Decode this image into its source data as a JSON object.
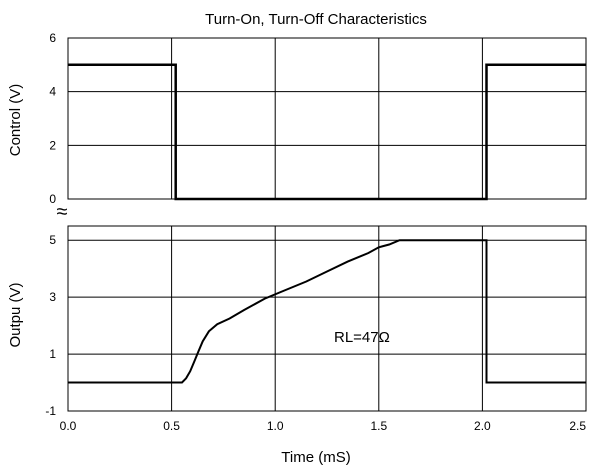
{
  "chart_data": {
    "type": "line",
    "title": "Turn-On, Turn-Off Characteristics",
    "xlabel": "Time (mS)",
    "xlim": [
      0,
      2.5
    ],
    "x_ticks": [
      "0.0",
      "0.5",
      "1.0",
      "1.5",
      "2.0",
      "2.5"
    ],
    "grid": true,
    "panels": [
      {
        "name": "control",
        "ylabel": "Control (V)",
        "ylim": [
          0,
          6
        ],
        "y_ticks": [
          "6",
          "4",
          "2",
          "0"
        ],
        "series": [
          {
            "x": [
              0.0,
              0.52,
              0.52,
              2.02,
              2.02,
              2.5
            ],
            "y": [
              5.0,
              5.0,
              0.0,
              0.0,
              5.0,
              5.0
            ]
          }
        ]
      },
      {
        "name": "output",
        "ylabel": "Outpu (V)",
        "ylim": [
          -1,
          5.5
        ],
        "y_ticks": [
          "5",
          "3",
          "1",
          "-1"
        ],
        "series": [
          {
            "x": [
              0.0,
              0.55,
              0.57,
              0.59,
              0.61,
              0.63,
              0.65,
              0.68,
              0.72,
              0.78,
              0.85,
              0.95,
              1.05,
              1.15,
              1.25,
              1.35,
              1.45,
              1.5,
              1.55,
              1.6,
              2.02,
              2.02,
              2.5
            ],
            "y": [
              0.0,
              0.0,
              0.15,
              0.4,
              0.75,
              1.1,
              1.45,
              1.8,
              2.05,
              2.25,
              2.55,
              2.95,
              3.25,
              3.55,
              3.9,
              4.25,
              4.55,
              4.75,
              4.85,
              5.0,
              5.0,
              0.0,
              0.0
            ]
          }
        ],
        "annotation": "RL=47Ω"
      }
    ],
    "axis_break_symbol": "≈"
  }
}
